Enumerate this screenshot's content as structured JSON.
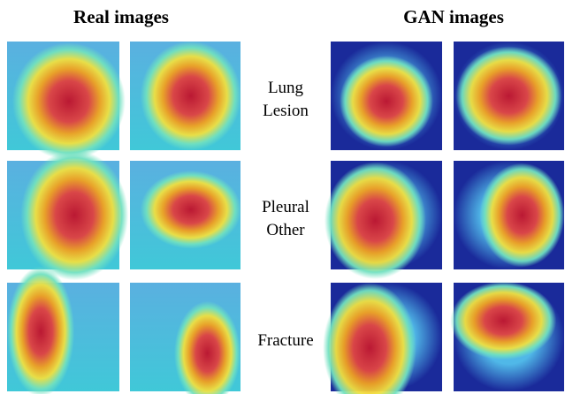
{
  "headers": {
    "real": "Real images",
    "gan": "GAN images"
  },
  "rows": [
    {
      "label_lines": [
        "Lung",
        "Lesion"
      ]
    },
    {
      "label_lines": [
        "Pleural",
        "Other"
      ]
    },
    {
      "label_lines": [
        "Fracture"
      ]
    }
  ]
}
